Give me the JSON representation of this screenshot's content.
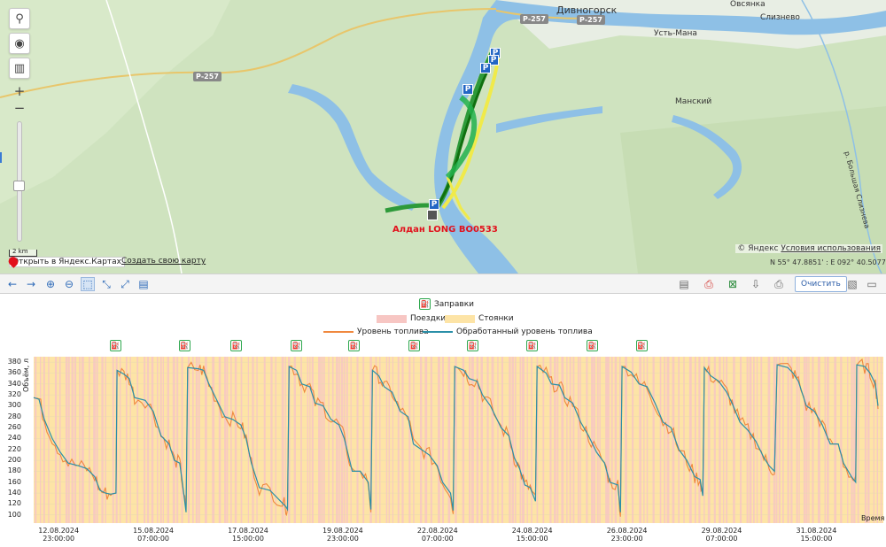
{
  "map": {
    "places": {
      "divnogorsk": "Дивногорск",
      "ovsyanka": "Овсянка",
      "sliznevo": "Слизнево",
      "ust_mana": "Усть-Мана",
      "manskiy": "Манский",
      "bolshaya": "р. Большая Слизнева"
    },
    "roads": [
      "Р-257",
      "Р-257",
      "Р-257"
    ],
    "vehicle_label": "Алдан LONG ВО0533",
    "scale": "2 km",
    "open_in_yandex": "Открыть в Яндекс.Картах",
    "create_map": "Создать свою карту",
    "copyright": "© Яндекс",
    "terms": "Условия использования",
    "coords": "N 55° 47.8851' : E 092° 40.5077'",
    "controls": {
      "zoom_in": "+",
      "zoom_out": "−",
      "parking": "P"
    }
  },
  "toolbar": {
    "clear": "Очистить"
  },
  "chart_data": {
    "type": "line",
    "legend": {
      "refuels": "Заправки",
      "trips": "Поездки",
      "stops": "Стоянки",
      "fuel_level": "Уровень топлива",
      "processed_level": "Обработанный уровень топлива"
    },
    "ylabel": "Объём, л",
    "xlabel": "Время",
    "ylim": [
      85,
      390
    ],
    "yticks": [
      "380",
      "360",
      "340",
      "320",
      "300",
      "280",
      "260",
      "240",
      "220",
      "200",
      "180",
      "160",
      "140",
      "120",
      "100"
    ],
    "xticks": [
      {
        "date": "12.08.2024",
        "time": "23:00:00"
      },
      {
        "date": "15.08.2024",
        "time": "07:00:00"
      },
      {
        "date": "17.08.2024",
        "time": "15:00:00"
      },
      {
        "date": "19.08.2024",
        "time": "23:00:00"
      },
      {
        "date": "22.08.2024",
        "time": "07:00:00"
      },
      {
        "date": "24.08.2024",
        "time": "15:00:00"
      },
      {
        "date": "26.08.2024",
        "time": "23:00:00"
      },
      {
        "date": "29.08.2024",
        "time": "07:00:00"
      },
      {
        "date": "31.08.2024",
        "time": "15:00:00"
      }
    ],
    "x_hours_per_tick": 56,
    "x_start": "11.08.2024 00:00",
    "refuel_times_h": [
      155,
      285,
      382,
      496,
      604,
      718,
      828,
      940,
      1053,
      1146
    ],
    "series": [
      {
        "name": "Обработанный уровень топлива",
        "color": "#2a8fa8",
        "points": [
          [
            0,
            315
          ],
          [
            10,
            312
          ],
          [
            20,
            275
          ],
          [
            35,
            240
          ],
          [
            50,
            215
          ],
          [
            65,
            195
          ],
          [
            85,
            190
          ],
          [
            100,
            185
          ],
          [
            115,
            170
          ],
          [
            125,
            145
          ],
          [
            135,
            140
          ],
          [
            145,
            138
          ],
          [
            155,
            140
          ],
          [
            157,
            365
          ],
          [
            170,
            358
          ],
          [
            180,
            350
          ],
          [
            190,
            315
          ],
          [
            210,
            310
          ],
          [
            225,
            290
          ],
          [
            240,
            245
          ],
          [
            255,
            230
          ],
          [
            265,
            200
          ],
          [
            275,
            195
          ],
          [
            280,
            160
          ],
          [
            287,
            105
          ],
          [
            290,
            370
          ],
          [
            310,
            368
          ],
          [
            320,
            365
          ],
          [
            330,
            340
          ],
          [
            345,
            310
          ],
          [
            360,
            280
          ],
          [
            375,
            275
          ],
          [
            390,
            265
          ],
          [
            400,
            240
          ],
          [
            410,
            195
          ],
          [
            425,
            150
          ],
          [
            445,
            145
          ],
          [
            465,
            125
          ],
          [
            475,
            115
          ],
          [
            478,
            110
          ],
          [
            481,
            372
          ],
          [
            495,
            365
          ],
          [
            505,
            340
          ],
          [
            520,
            335
          ],
          [
            530,
            305
          ],
          [
            545,
            300
          ],
          [
            560,
            275
          ],
          [
            575,
            265
          ],
          [
            585,
            240
          ],
          [
            600,
            180
          ],
          [
            615,
            180
          ],
          [
            630,
            160
          ],
          [
            635,
            110
          ],
          [
            638,
            365
          ],
          [
            650,
            355
          ],
          [
            660,
            335
          ],
          [
            675,
            325
          ],
          [
            690,
            290
          ],
          [
            705,
            280
          ],
          [
            715,
            230
          ],
          [
            730,
            220
          ],
          [
            745,
            210
          ],
          [
            760,
            190
          ],
          [
            770,
            160
          ],
          [
            785,
            140
          ],
          [
            790,
            108
          ],
          [
            793,
            372
          ],
          [
            810,
            365
          ],
          [
            820,
            350
          ],
          [
            835,
            345
          ],
          [
            845,
            320
          ],
          [
            860,
            300
          ],
          [
            880,
            260
          ],
          [
            895,
            245
          ],
          [
            905,
            205
          ],
          [
            915,
            185
          ],
          [
            925,
            155
          ],
          [
            935,
            150
          ],
          [
            945,
            125
          ],
          [
            948,
            372
          ],
          [
            965,
            360
          ],
          [
            975,
            340
          ],
          [
            990,
            338
          ],
          [
            1000,
            315
          ],
          [
            1015,
            305
          ],
          [
            1030,
            270
          ],
          [
            1045,
            245
          ],
          [
            1060,
            215
          ],
          [
            1075,
            195
          ],
          [
            1085,
            160
          ],
          [
            1100,
            155
          ],
          [
            1105,
            105
          ],
          [
            1108,
            372
          ],
          [
            1125,
            362
          ],
          [
            1140,
            340
          ],
          [
            1155,
            335
          ],
          [
            1170,
            305
          ],
          [
            1185,
            270
          ],
          [
            1200,
            260
          ],
          [
            1215,
            220
          ],
          [
            1230,
            200
          ],
          [
            1245,
            170
          ],
          [
            1255,
            165
          ],
          [
            1260,
            135
          ],
          [
            1263,
            370
          ],
          [
            1275,
            355
          ],
          [
            1290,
            345
          ],
          [
            1305,
            325
          ],
          [
            1315,
            305
          ],
          [
            1330,
            270
          ],
          [
            1345,
            255
          ],
          [
            1360,
            235
          ],
          [
            1375,
            205
          ],
          [
            1385,
            190
          ],
          [
            1395,
            180
          ],
          [
            1400,
            375
          ],
          [
            1420,
            370
          ],
          [
            1430,
            360
          ],
          [
            1440,
            345
          ],
          [
            1455,
            300
          ],
          [
            1470,
            290
          ],
          [
            1485,
            265
          ],
          [
            1500,
            230
          ],
          [
            1515,
            230
          ],
          [
            1525,
            195
          ],
          [
            1540,
            170
          ],
          [
            1548,
            160
          ],
          [
            1550,
            375
          ],
          [
            1565,
            372
          ],
          [
            1575,
            360
          ],
          [
            1585,
            340
          ],
          [
            1590,
            300
          ]
        ]
      }
    ]
  }
}
